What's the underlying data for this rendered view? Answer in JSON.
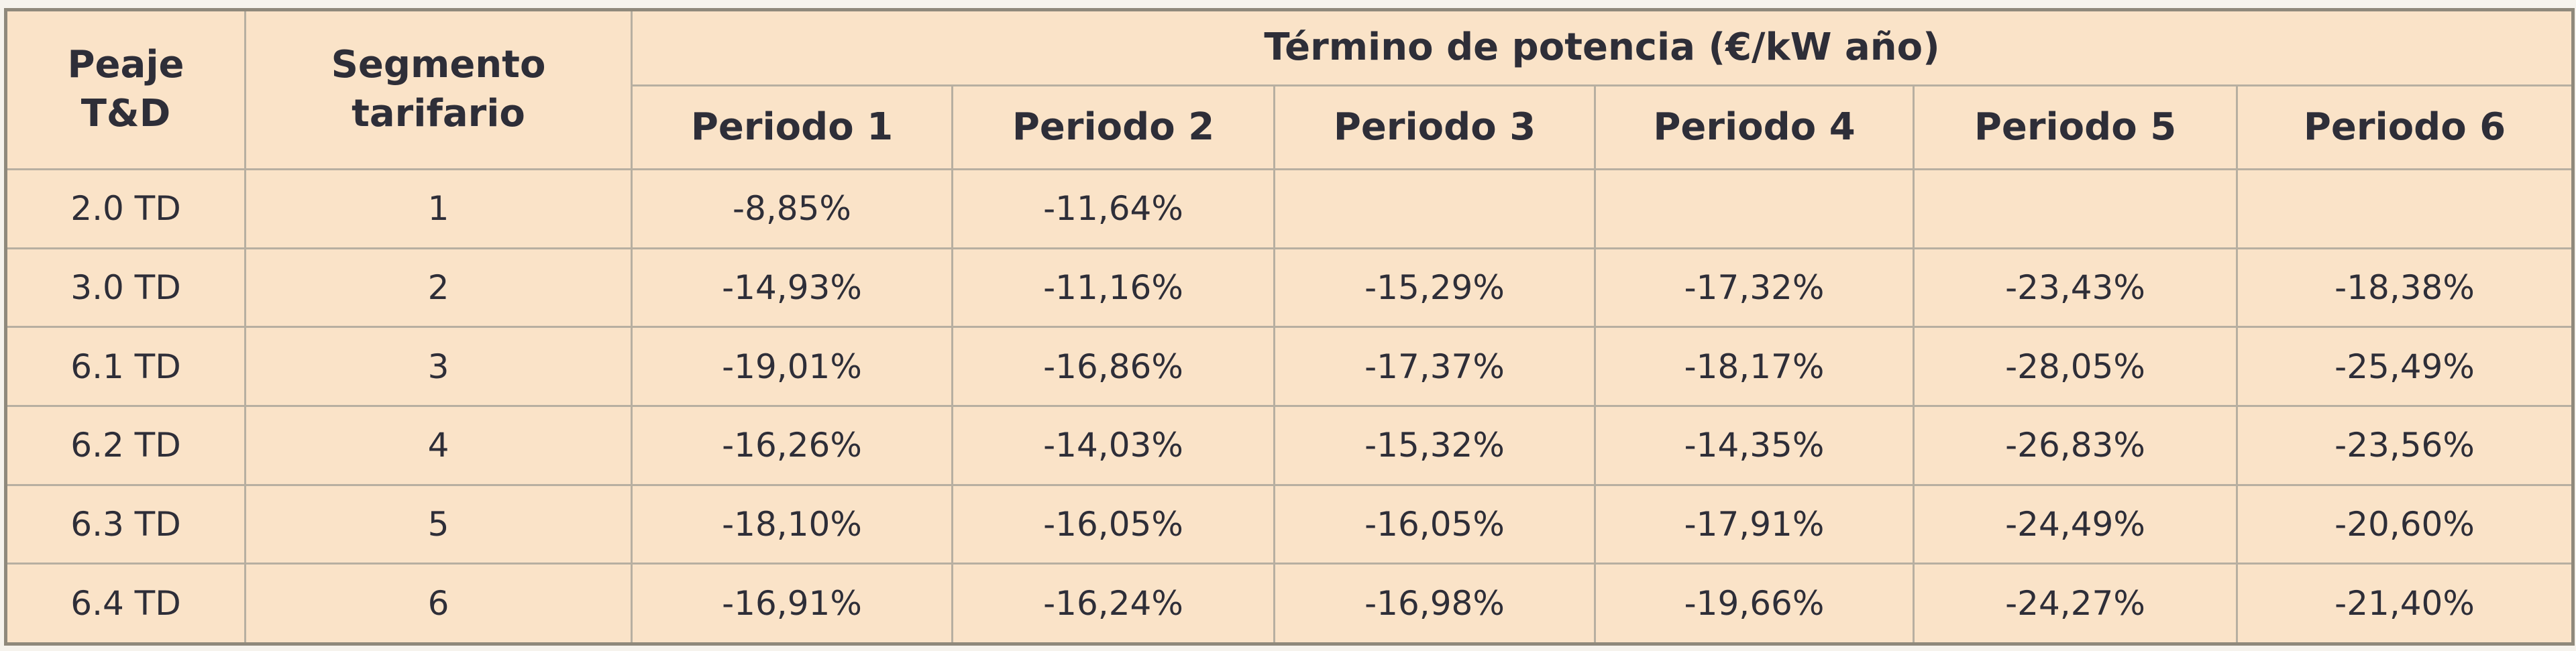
{
  "table": {
    "headers": {
      "peaje": "Peaje\nT&D",
      "segmento": "Segmento\ntarifario",
      "group": "Término de potencia (€/kW año)",
      "periods": [
        "Periodo 1",
        "Periodo 2",
        "Periodo 3",
        "Periodo 4",
        "Periodo 5",
        "Periodo 6"
      ]
    },
    "rows": [
      {
        "peaje": "2.0 TD",
        "segmento": "1",
        "values": [
          "-8,85%",
          "-11,64%",
          "",
          "",
          "",
          ""
        ]
      },
      {
        "peaje": "3.0 TD",
        "segmento": "2",
        "values": [
          "-14,93%",
          "-11,16%",
          "-15,29%",
          "-17,32%",
          "-23,43%",
          "-18,38%"
        ]
      },
      {
        "peaje": "6.1 TD",
        "segmento": "3",
        "values": [
          "-19,01%",
          "-16,86%",
          "-17,37%",
          "-18,17%",
          "-28,05%",
          "-25,49%"
        ]
      },
      {
        "peaje": "6.2 TD",
        "segmento": "4",
        "values": [
          "-16,26%",
          "-14,03%",
          "-15,32%",
          "-14,35%",
          "-26,83%",
          "-23,56%"
        ]
      },
      {
        "peaje": "6.3 TD",
        "segmento": "5",
        "values": [
          "-18,10%",
          "-16,05%",
          "-16,05%",
          "-17,91%",
          "-24,49%",
          "-20,60%"
        ]
      },
      {
        "peaje": "6.4 TD",
        "segmento": "6",
        "values": [
          "-16,91%",
          "-16,24%",
          "-16,98%",
          "-19,66%",
          "-24,27%",
          "-21,40%"
        ]
      }
    ],
    "colors": {
      "cell_background": "#fae3c8",
      "inner_border": "#b7afa1",
      "outer_border": "#8f897c",
      "text": "#2e2e38",
      "page_background": "#f6f3ed"
    }
  }
}
